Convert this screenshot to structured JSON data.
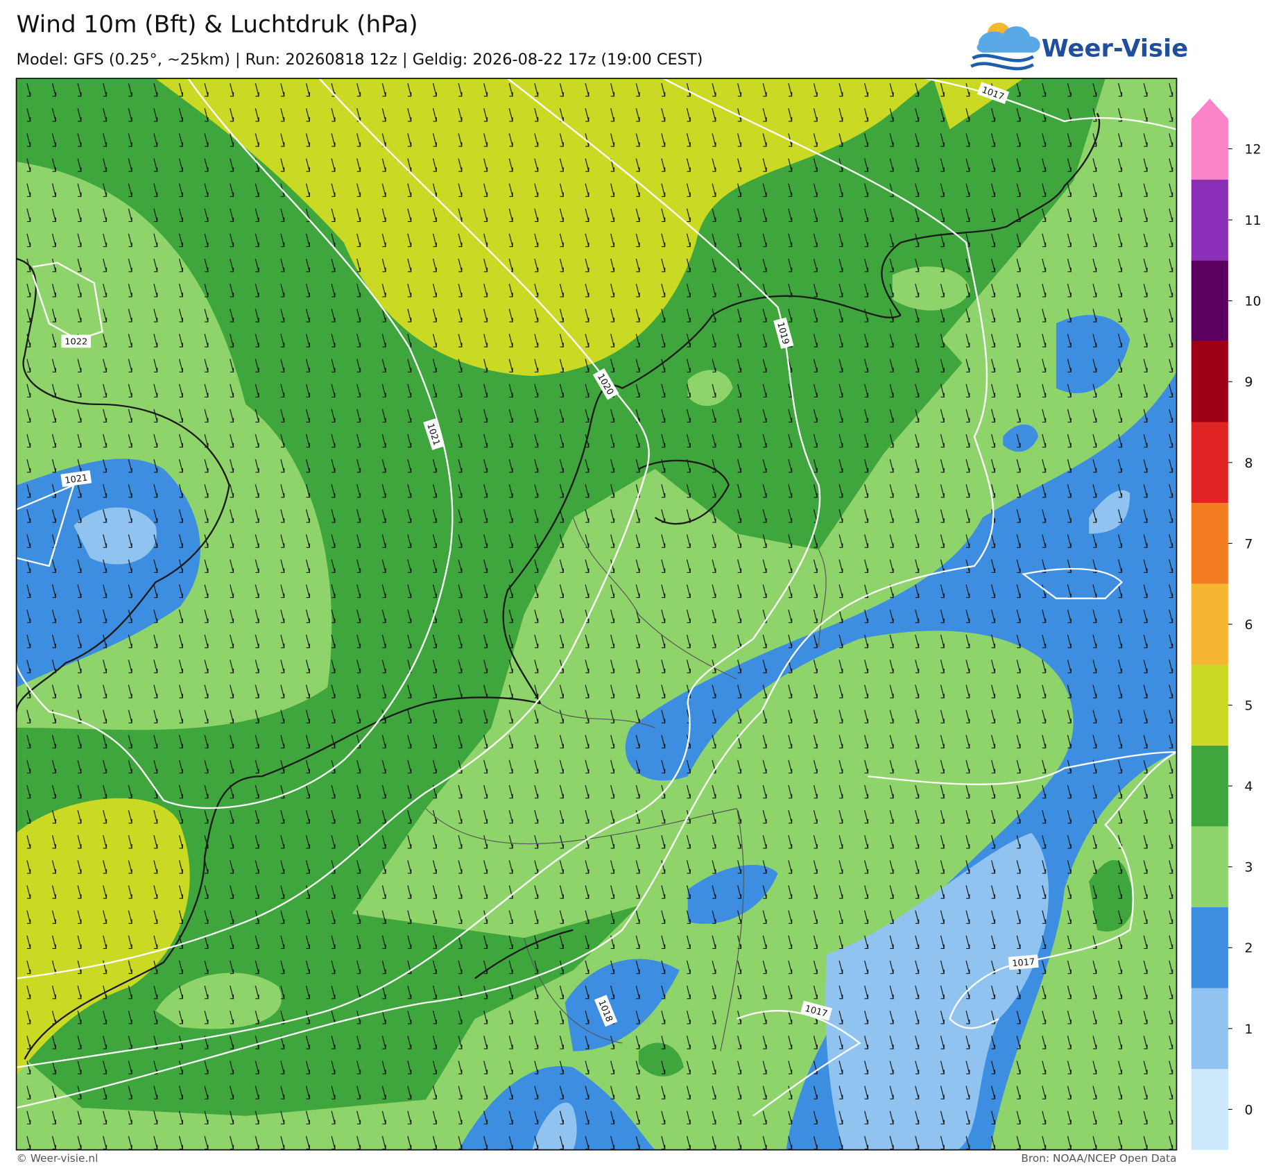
{
  "header": {
    "title": "Wind 10m (Bft) & Luchtdruk (hPa)",
    "subtitle": "Model: GFS (0.25°, ~25km)  |  Run: 20260818 12z  |  Geldig: 2026-08-22 17z (19:00 CEST)"
  },
  "logo": {
    "text": "Weer-Visie"
  },
  "legend": {
    "levels": [
      {
        "value": 0,
        "color": "#cde7fb"
      },
      {
        "value": 1,
        "color": "#90c3ef"
      },
      {
        "value": 2,
        "color": "#3d8de0"
      },
      {
        "value": 3,
        "color": "#8fd46a"
      },
      {
        "value": 4,
        "color": "#3ea63c"
      },
      {
        "value": 5,
        "color": "#cad923"
      },
      {
        "value": 6,
        "color": "#f5b731"
      },
      {
        "value": 7,
        "color": "#f47d22"
      },
      {
        "value": 8,
        "color": "#e02424"
      },
      {
        "value": 9,
        "color": "#9e0016"
      },
      {
        "value": 10,
        "color": "#5c0060"
      },
      {
        "value": 11,
        "color": "#8b2fb8"
      },
      {
        "value": 12,
        "color": "#fb83c8"
      }
    ]
  },
  "isobars": [
    {
      "label": 1022
    },
    {
      "label": 1021
    },
    {
      "label": 1021
    },
    {
      "label": 1020
    },
    {
      "label": 1019
    },
    {
      "label": 1018
    },
    {
      "label": 1017
    },
    {
      "label": 1017
    },
    {
      "label": 1017
    }
  ],
  "footer": {
    "left": "© Weer-visie.nl",
    "right": "Bron: NOAA/NCEP Open Data"
  }
}
